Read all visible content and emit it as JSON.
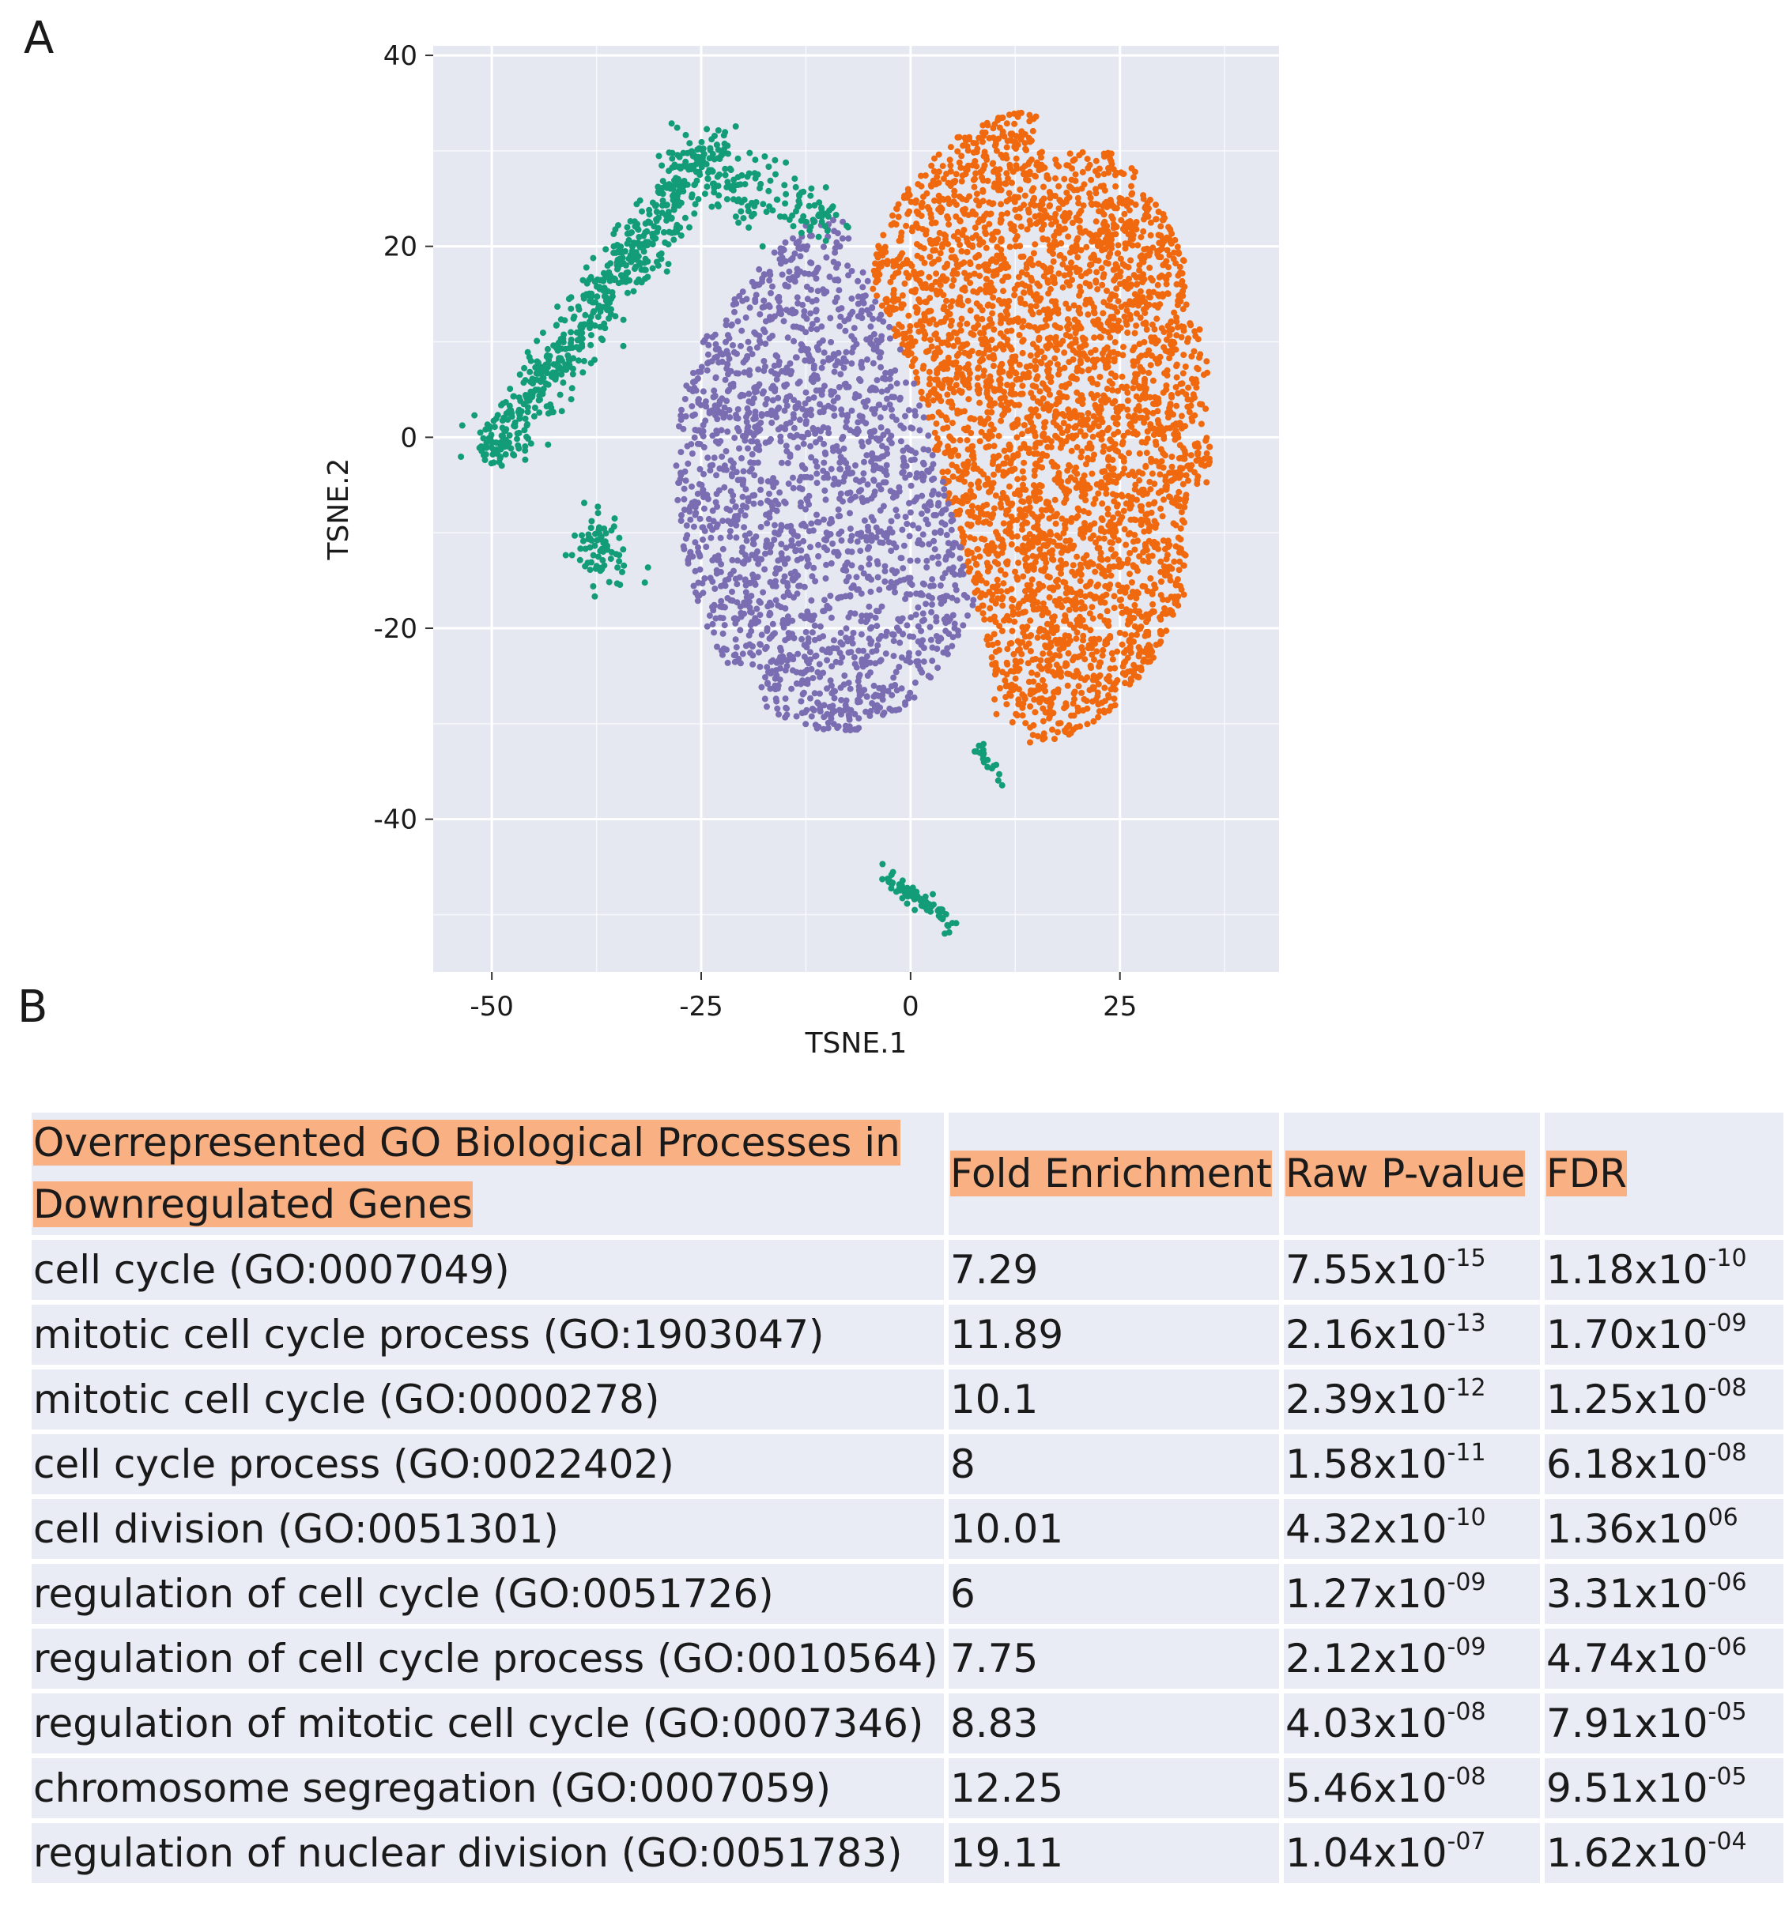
{
  "panels": {
    "a_label": "A",
    "b_label": "B"
  },
  "chart_data": {
    "type": "scatter",
    "title": "",
    "xlabel": "TSNE.1",
    "ylabel": "TSNE.2",
    "xlim": [
      -57,
      44
    ],
    "ylim": [
      -56,
      41
    ],
    "xticks": [
      -50,
      -25,
      0,
      25
    ],
    "xtick_labels": [
      "-50",
      "-25",
      "0",
      "25"
    ],
    "yticks": [
      40,
      20,
      0,
      -20,
      -40
    ],
    "ytick_labels": [
      "40",
      "20",
      "0",
      "-20",
      "-40"
    ],
    "grid": true,
    "legend": "none",
    "colors": {
      "panel_bg": "#e5e8f1",
      "grid": "#ffffff"
    },
    "series": [
      {
        "color": "#f0690f",
        "approx_point_count": 4200,
        "clusters": [
          {
            "region": "right main cluster",
            "x_range": [
              -8,
              40
            ],
            "y_range": [
              -36,
              37
            ],
            "center": [
              16,
              2
            ]
          }
        ]
      },
      {
        "color": "#7b6db2",
        "approx_point_count": 2200,
        "clusters": [
          {
            "region": "central cluster",
            "x_range": [
              -30,
              9
            ],
            "y_range": [
              -30,
              24
            ],
            "center": [
              -8,
              -6
            ]
          }
        ]
      },
      {
        "color": "#129c77",
        "approx_point_count": 900,
        "clusters": [
          {
            "region": "upper-left diagonal band",
            "from": [
              -51,
              -3
            ],
            "to": [
              -23,
              32
            ]
          },
          {
            "region": "upper-left spur",
            "from": [
              -24,
              28
            ],
            "to": [
              -10,
              24
            ]
          },
          {
            "region": "left small cluster",
            "center": [
              -37,
              -12
            ]
          },
          {
            "region": "small cluster near bottom",
            "center": [
              10,
              -35
            ]
          },
          {
            "region": "bottom small cluster",
            "from": [
              -3,
              -46
            ],
            "to": [
              5,
              -51
            ]
          }
        ]
      }
    ]
  },
  "table": {
    "header": {
      "col1": "Overrepresented GO Biological Processes in Downregulated Genes",
      "col2": "Fold Enrichment",
      "col3": "Raw P-value",
      "col4": "FDR"
    },
    "rows": [
      {
        "process": "cell cycle (GO:0007049)",
        "fold": "7.29",
        "p_mant": "7.55x10",
        "p_exp": "-15",
        "fdr_mant": "1.18x10",
        "fdr_exp": "-10"
      },
      {
        "process": "mitotic cell cycle process (GO:1903047)",
        "fold": "11.89",
        "p_mant": "2.16x10",
        "p_exp": "-13",
        "fdr_mant": "1.70x10",
        "fdr_exp": "-09"
      },
      {
        "process": "mitotic cell cycle (GO:0000278)",
        "fold": "10.1",
        "p_mant": "2.39x10",
        "p_exp": "-12",
        "fdr_mant": "1.25x10",
        "fdr_exp": "-08"
      },
      {
        "process": "cell cycle process (GO:0022402)",
        "fold": "8",
        "p_mant": "1.58x10",
        "p_exp": "-11",
        "fdr_mant": "6.18x10",
        "fdr_exp": "-08"
      },
      {
        "process": "cell division (GO:0051301)",
        "fold": "10.01",
        "p_mant": "4.32x10",
        "p_exp": "-10",
        "fdr_mant": "1.36x10",
        "fdr_exp": "06"
      },
      {
        "process": "regulation of cell cycle (GO:0051726)",
        "fold": "6",
        "p_mant": "1.27x10",
        "p_exp": "-09",
        "fdr_mant": "3.31x10",
        "fdr_exp": "-06"
      },
      {
        "process": "regulation of cell cycle process (GO:0010564)",
        "fold": "7.75",
        "p_mant": "2.12x10",
        "p_exp": "-09",
        "fdr_mant": "4.74x10",
        "fdr_exp": "-06"
      },
      {
        "process": "regulation of mitotic cell cycle (GO:0007346)",
        "fold": "8.83",
        "p_mant": "4.03x10",
        "p_exp": "-08",
        "fdr_mant": "7.91x10",
        "fdr_exp": "-05"
      },
      {
        "process": "chromosome segregation (GO:0007059)",
        "fold": "12.25",
        "p_mant": "5.46x10",
        "p_exp": "-08",
        "fdr_mant": "9.51x10",
        "fdr_exp": "-05"
      },
      {
        "process": "regulation of nuclear division (GO:0051783)",
        "fold": "19.11",
        "p_mant": "1.04x10",
        "p_exp": "-07",
        "fdr_mant": "1.62x10",
        "fdr_exp": "-04"
      }
    ]
  }
}
